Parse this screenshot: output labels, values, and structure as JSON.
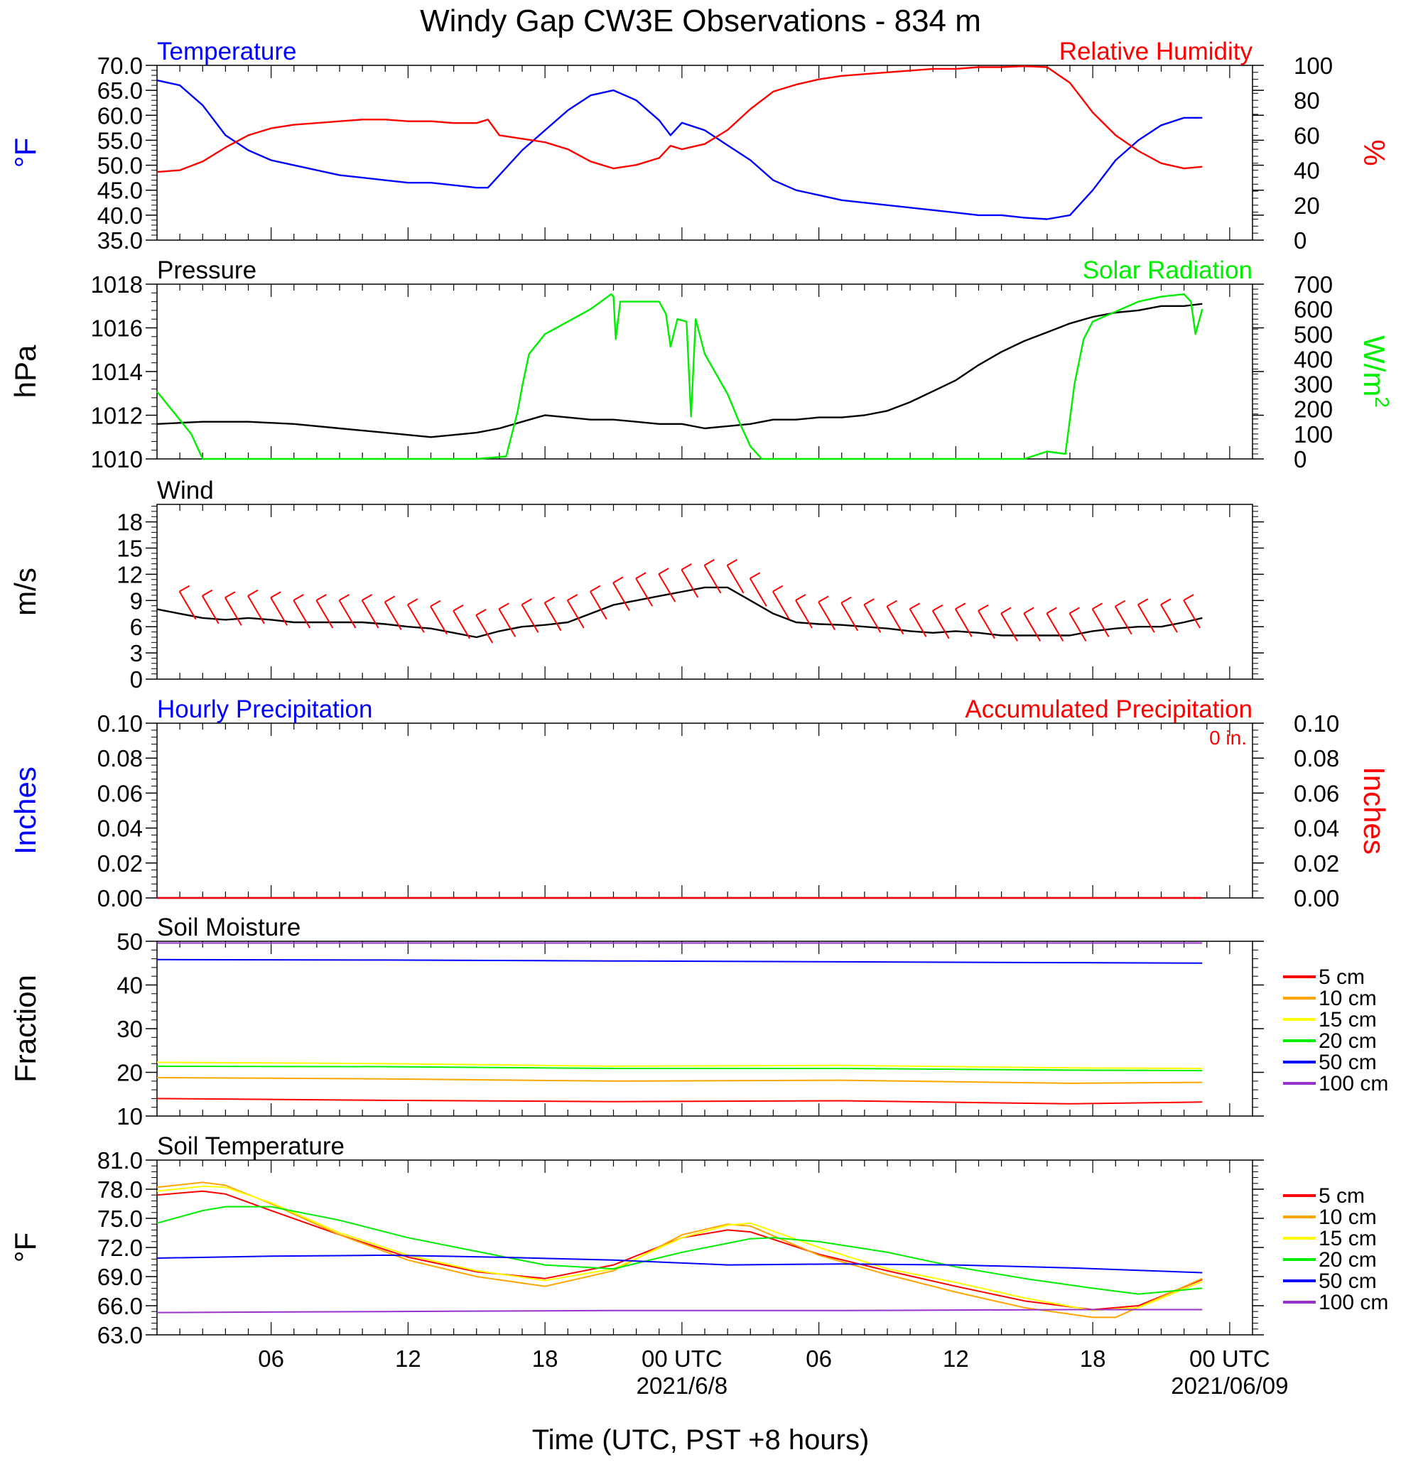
{
  "title": "Windy Gap CW3E Observations - 834 m",
  "xaxis": {
    "title": "Time (UTC, PST +8 hours)",
    "range_hours": [
      -5,
      43
    ],
    "ticks": [
      {
        "h": 0,
        "label": "06"
      },
      {
        "h": 6,
        "label": "12"
      },
      {
        "h": 12,
        "label": "18"
      },
      {
        "h": 18,
        "label": "00 UTC"
      },
      {
        "h": 24,
        "label": "06"
      },
      {
        "h": 30,
        "label": "12"
      },
      {
        "h": 36,
        "label": "18"
      },
      {
        "h": 42,
        "label": "00 UTC"
      }
    ],
    "date_labels": [
      {
        "h": 18,
        "label": "2021/6/8"
      },
      {
        "h": 42,
        "label": "2021/06/09"
      }
    ],
    "colors": {
      "blue": "#0000ff",
      "red": "#ff0000",
      "green": "#00ee00",
      "black": "#000000"
    }
  },
  "chart_data": [
    {
      "type": "line",
      "id": "temperature-rh",
      "left_title": "Temperature",
      "right_title": "Relative Humidity",
      "left_axis": {
        "label": "°F",
        "ylim": [
          35,
          70
        ],
        "ticks": [
          "70.0",
          "65.0",
          "60.0",
          "55.0",
          "50.0",
          "45.0",
          "40.0",
          "35.0"
        ]
      },
      "right_axis": {
        "label": "%",
        "ylim": [
          0,
          100
        ],
        "ticks": [
          "100",
          "80",
          "60",
          "40",
          "20",
          "0"
        ]
      },
      "series": [
        {
          "axis": "left",
          "color": "#0000ff",
          "x": [
            -5,
            -4,
            -3,
            -2,
            -1,
            0,
            1,
            2,
            3,
            4,
            5,
            6,
            7,
            8,
            9,
            9.5,
            10,
            11,
            12,
            13,
            14,
            15,
            16,
            17,
            17.5,
            18,
            19,
            20,
            21,
            22,
            23,
            24,
            25,
            26,
            27,
            28,
            29,
            30,
            31,
            32,
            33,
            34,
            35,
            36,
            37,
            38,
            39,
            40,
            40.8
          ],
          "y": [
            67,
            66,
            62,
            56,
            53,
            51,
            50,
            49,
            48,
            47.5,
            47,
            46.5,
            46.5,
            46,
            45.5,
            45.5,
            48,
            53,
            57,
            61,
            64,
            65,
            63,
            59,
            56,
            58.5,
            57,
            54,
            51,
            47,
            45,
            44,
            43,
            42.5,
            42,
            41.5,
            41,
            40.5,
            40,
            40,
            39.5,
            39.2,
            40,
            45,
            51,
            55,
            58,
            59.5,
            59.5
          ]
        },
        {
          "axis": "right",
          "color": "#ff0000",
          "x": [
            -5,
            -4,
            -3,
            -2,
            -1,
            0,
            1,
            2,
            3,
            4,
            5,
            6,
            7,
            8,
            9,
            9.5,
            10,
            11,
            12,
            13,
            14,
            15,
            16,
            17,
            17.5,
            18,
            19,
            20,
            21,
            22,
            23,
            24,
            25,
            26,
            27,
            28,
            29,
            30,
            31,
            32,
            33,
            34,
            35,
            36,
            37,
            38,
            39,
            40,
            40.8
          ],
          "y": [
            39,
            40,
            45,
            53,
            60,
            64,
            66,
            67,
            68,
            69,
            69,
            68,
            68,
            67,
            67,
            69,
            60,
            58,
            56,
            52,
            45,
            41,
            43,
            47,
            54,
            52,
            55,
            63,
            75,
            85,
            89,
            92,
            94,
            95,
            96,
            97,
            98,
            98,
            99,
            99,
            99.5,
            99,
            90,
            73,
            60,
            51,
            44,
            41,
            42
          ]
        }
      ]
    },
    {
      "type": "line",
      "id": "pressure-solar",
      "left_title": "Pressure",
      "right_title": "Solar Radiation",
      "left_axis": {
        "label": "hPa",
        "ylim": [
          1010,
          1018
        ],
        "ticks": [
          "1018",
          "1016",
          "1014",
          "1012",
          "1010"
        ]
      },
      "right_axis": {
        "label": "W/m",
        "superscript": "2",
        "ylim": [
          0,
          700
        ],
        "ticks": [
          "700",
          "600",
          "500",
          "400",
          "300",
          "200",
          "100",
          "0"
        ]
      },
      "series": [
        {
          "axis": "left",
          "color": "#000000",
          "x": [
            -5,
            -3,
            -1,
            1,
            3,
            5,
            7,
            9,
            10,
            11,
            12,
            13,
            14,
            15,
            16,
            17,
            18,
            19,
            20,
            21,
            22,
            23,
            24,
            25,
            26,
            27,
            28,
            29,
            30,
            31,
            32,
            33,
            34,
            35,
            36,
            37,
            38,
            39,
            40,
            40.8
          ],
          "y": [
            1011.6,
            1011.7,
            1011.7,
            1011.6,
            1011.4,
            1011.2,
            1011,
            1011.2,
            1011.4,
            1011.7,
            1012,
            1011.9,
            1011.8,
            1011.8,
            1011.7,
            1011.6,
            1011.6,
            1011.4,
            1011.5,
            1011.6,
            1011.8,
            1011.8,
            1011.9,
            1011.9,
            1012,
            1012.2,
            1012.6,
            1013.1,
            1013.6,
            1014.3,
            1014.9,
            1015.4,
            1015.8,
            1016.2,
            1016.5,
            1016.7,
            1016.8,
            1017,
            1017,
            1017.1
          ]
        },
        {
          "axis": "right",
          "color": "#00ee00",
          "x": [
            -5,
            -3.5,
            -3,
            9,
            10.3,
            10.8,
            11,
            11.3,
            12,
            13,
            14,
            14.9,
            15,
            15.1,
            15.3,
            16,
            17,
            17.3,
            17.5,
            17.8,
            18.2,
            18.4,
            18.6,
            19,
            20,
            20.5,
            21,
            21.5,
            22,
            23,
            24,
            25,
            26,
            27,
            28,
            29,
            30,
            31,
            32,
            33,
            34,
            34.8,
            35.2,
            35.6,
            36,
            37,
            38,
            39,
            40,
            40.3,
            40.5,
            40.8
          ],
          "y": [
            270,
            100,
            0,
            0,
            10,
            190,
            290,
            420,
            500,
            550,
            600,
            660,
            650,
            480,
            630,
            630,
            630,
            580,
            450,
            560,
            550,
            170,
            560,
            420,
            260,
            150,
            50,
            0,
            0,
            0,
            0,
            0,
            0,
            0,
            0,
            0,
            0,
            0,
            0,
            0,
            30,
            20,
            300,
            480,
            550,
            590,
            630,
            650,
            660,
            630,
            500,
            600
          ]
        }
      ]
    },
    {
      "type": "line",
      "id": "wind",
      "left_title": "Wind",
      "left_axis": {
        "label": "m/s",
        "ylim": [
          0,
          20
        ],
        "ticks": [
          "18",
          "15",
          "12",
          "9",
          "6",
          "3",
          "0"
        ],
        "tick_values": [
          18,
          15,
          12,
          9,
          6,
          3,
          0
        ]
      },
      "series": [
        {
          "axis": "left",
          "color": "#000000",
          "x": [
            -5,
            -4,
            -3,
            -2,
            -1,
            0,
            1,
            2,
            3,
            4,
            5,
            6,
            7,
            8,
            9,
            10,
            11,
            12,
            13,
            14,
            15,
            16,
            17,
            18,
            19,
            20,
            21,
            22,
            23,
            24,
            25,
            26,
            27,
            28,
            29,
            30,
            31,
            32,
            33,
            34,
            35,
            36,
            37,
            38,
            39,
            40,
            40.8
          ],
          "y": [
            8,
            7.5,
            7,
            6.8,
            7,
            6.8,
            6.5,
            6.5,
            6.5,
            6.5,
            6.3,
            6,
            5.8,
            5.3,
            4.8,
            5.5,
            6,
            6.2,
            6.5,
            7.5,
            8.5,
            9,
            9.5,
            10,
            10.5,
            10.5,
            9,
            7.5,
            6.5,
            6.3,
            6.2,
            6,
            5.8,
            5.5,
            5.3,
            5.5,
            5.3,
            5,
            5,
            5,
            5,
            5.5,
            5.8,
            6,
            6,
            6.5,
            7
          ]
        }
      ],
      "barbs_color": "#ff0000"
    },
    {
      "type": "line",
      "id": "precipitation",
      "left_title": "Hourly Precipitation",
      "right_title": "Accumulated Precipitation",
      "annotation": "0 in.",
      "left_axis": {
        "label": "Inches",
        "ylim": [
          0,
          0.1
        ],
        "ticks": [
          "0.10",
          "0.08",
          "0.06",
          "0.04",
          "0.02",
          "0.00"
        ]
      },
      "right_axis": {
        "label": "Inches",
        "ylim": [
          0,
          0.1
        ],
        "ticks": [
          "0.10",
          "0.08",
          "0.06",
          "0.04",
          "0.02",
          "0.00"
        ]
      },
      "series": [
        {
          "axis": "left",
          "color": "#0000ff",
          "x": [
            -5,
            40.8
          ],
          "y": [
            0,
            0
          ]
        },
        {
          "axis": "right",
          "color": "#ff0000",
          "x": [
            -5,
            40.8
          ],
          "y": [
            0,
            0
          ]
        }
      ]
    },
    {
      "type": "line",
      "id": "soil-moisture",
      "left_title": "Soil Moisture",
      "left_axis": {
        "label": "Fraction",
        "ylim": [
          10,
          50
        ],
        "ticks": [
          "50",
          "40",
          "30",
          "20",
          "10"
        ]
      },
      "legend": [
        "5 cm",
        "10 cm",
        "15 cm",
        "20 cm",
        "50 cm",
        "100 cm"
      ],
      "series": [
        {
          "name": "5 cm",
          "axis": "left",
          "color": "#ff0000",
          "x": [
            -5,
            5,
            15,
            25,
            35,
            40.8
          ],
          "y": [
            14,
            13.6,
            13.3,
            13.5,
            12.8,
            13.2
          ]
        },
        {
          "name": "10 cm",
          "axis": "left",
          "color": "#ffa500",
          "x": [
            -5,
            5,
            15,
            25,
            35,
            40.8
          ],
          "y": [
            18.8,
            18.5,
            18,
            18.2,
            17.5,
            17.7
          ]
        },
        {
          "name": "15 cm",
          "axis": "left",
          "color": "#ffff00",
          "x": [
            -5,
            5,
            15,
            25,
            35,
            40.8
          ],
          "y": [
            22.3,
            22,
            21.4,
            21.6,
            21,
            20.9
          ]
        },
        {
          "name": "20 cm",
          "axis": "left",
          "color": "#00ee00",
          "x": [
            -5,
            5,
            15,
            25,
            35,
            40.8
          ],
          "y": [
            21.4,
            21.3,
            20.9,
            20.9,
            20.5,
            20.4
          ]
        },
        {
          "name": "50 cm",
          "axis": "left",
          "color": "#0000ff",
          "x": [
            -5,
            5,
            15,
            25,
            35,
            40.8
          ],
          "y": [
            45.8,
            45.7,
            45.5,
            45.3,
            45.1,
            45
          ]
        },
        {
          "name": "100 cm",
          "axis": "left",
          "color": "#9932cc",
          "x": [
            -5,
            40.8
          ],
          "y": [
            49.6,
            49.6
          ]
        }
      ]
    },
    {
      "type": "line",
      "id": "soil-temperature",
      "left_title": "Soil Temperature",
      "left_axis": {
        "label": "°F",
        "ylim": [
          63,
          81
        ],
        "ticks": [
          "81.0",
          "78.0",
          "75.0",
          "72.0",
          "69.0",
          "66.0",
          "63.0"
        ]
      },
      "legend": [
        "5 cm",
        "10 cm",
        "15 cm",
        "20 cm",
        "50 cm",
        "100 cm"
      ],
      "series": [
        {
          "name": "5 cm",
          "axis": "left",
          "color": "#ff0000",
          "x": [
            -5,
            -3,
            -2,
            0,
            3,
            6,
            9,
            12,
            15,
            18,
            20,
            21,
            24,
            27,
            30,
            33,
            36,
            38,
            40.8
          ],
          "y": [
            77.4,
            77.8,
            77.5,
            75.8,
            73.3,
            71,
            69.5,
            68.8,
            70.2,
            73,
            73.8,
            73.6,
            71.3,
            69.6,
            68,
            66.5,
            65.6,
            66,
            68.7
          ]
        },
        {
          "name": "10 cm",
          "axis": "left",
          "color": "#ffa500",
          "x": [
            -5,
            -3,
            -2,
            0,
            3,
            6,
            9,
            12,
            15,
            18,
            20,
            21,
            24,
            27,
            30,
            33,
            36,
            37,
            40.8
          ],
          "y": [
            78.2,
            78.7,
            78.4,
            76.5,
            73.3,
            70.7,
            69,
            68,
            69.6,
            73.3,
            74.4,
            74.2,
            71.2,
            69.2,
            67.4,
            65.8,
            64.8,
            64.8,
            68.8
          ]
        },
        {
          "name": "15 cm",
          "axis": "left",
          "color": "#ffff00",
          "x": [
            -5,
            -3,
            -2,
            0,
            3,
            6,
            9,
            12,
            15,
            18,
            20,
            21,
            24,
            27,
            30,
            33,
            36,
            38,
            40.8
          ],
          "y": [
            77.8,
            78.3,
            78.2,
            76.6,
            73.5,
            71.2,
            69.6,
            68.6,
            69.8,
            73,
            74.3,
            74.5,
            72,
            69.8,
            68.4,
            66.8,
            65.5,
            65.8,
            68.5
          ]
        },
        {
          "name": "20 cm",
          "axis": "left",
          "color": "#00ee00",
          "x": [
            -5,
            -3,
            -2,
            0,
            3,
            6,
            9,
            12,
            15,
            18,
            21,
            22,
            24,
            27,
            30,
            33,
            36,
            38,
            40.8
          ],
          "y": [
            74.5,
            75.8,
            76.2,
            76.2,
            74.8,
            73,
            71.6,
            70.2,
            69.8,
            71.5,
            72.9,
            73,
            72.6,
            71.5,
            70,
            68.8,
            67.8,
            67.2,
            67.8
          ]
        },
        {
          "name": "50 cm",
          "axis": "left",
          "color": "#0000ff",
          "x": [
            -5,
            0,
            5,
            10,
            15,
            20,
            25,
            30,
            35,
            40.8
          ],
          "y": [
            70.9,
            71.1,
            71.2,
            71,
            70.7,
            70.2,
            70.3,
            70.2,
            69.9,
            69.4
          ]
        },
        {
          "name": "100 cm",
          "axis": "left",
          "color": "#9932cc",
          "x": [
            -5,
            5,
            15,
            25,
            35,
            40.8
          ],
          "y": [
            65.3,
            65.4,
            65.5,
            65.5,
            65.6,
            65.6
          ]
        }
      ]
    }
  ]
}
